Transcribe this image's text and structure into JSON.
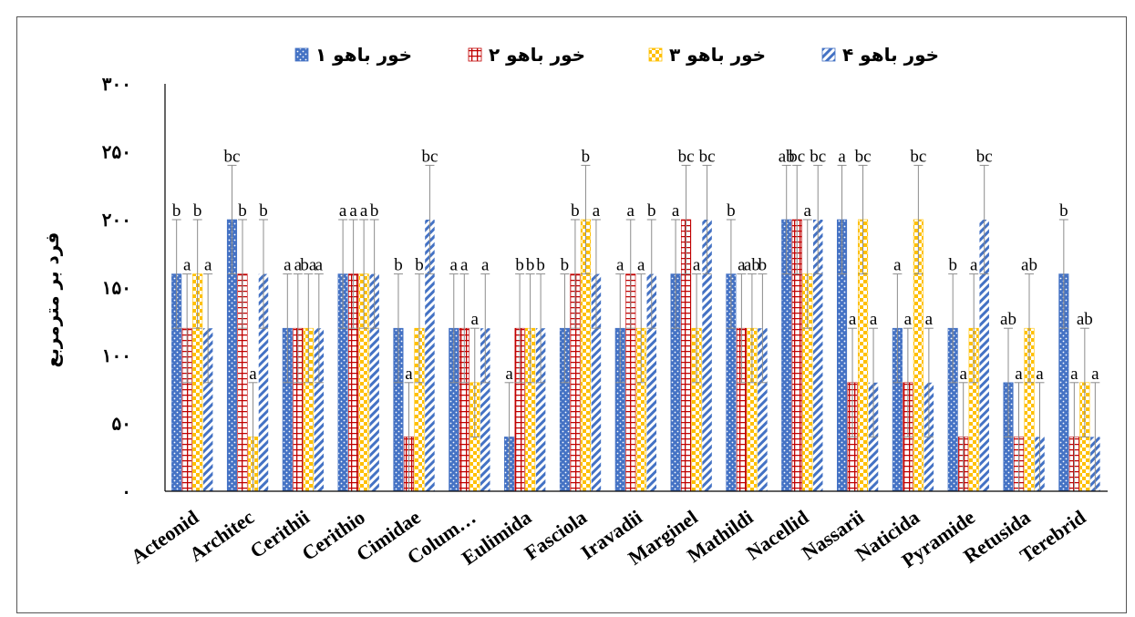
{
  "chart_data": {
    "type": "bar",
    "title": "",
    "xlabel": "",
    "ylabel": "فرد بر مترمربع",
    "ylim": [
      0,
      300
    ],
    "yticks": [
      "۰",
      "۵۰",
      "۱۰۰",
      "۱۵۰",
      "۲۰۰",
      "۲۵۰",
      "۳۰۰"
    ],
    "ytick_values": [
      0,
      50,
      100,
      150,
      200,
      250,
      300
    ],
    "legend_position": "top",
    "categories": [
      "Acteonid",
      "Architec",
      "Cerithii",
      "Cerithio",
      "Cimidae",
      "Colum…",
      "Eulimida",
      "Fasciola",
      "Iravadii",
      "Marginel",
      "Mathildi",
      "Nacellid",
      "Nassarii",
      "Naticida",
      "Pyramide",
      "Retusida",
      "Terebrid"
    ],
    "series": [
      {
        "name": "خور باهو ۱",
        "color": "#4472C4",
        "values": [
          160,
          200,
          120,
          160,
          120,
          120,
          40,
          120,
          120,
          160,
          160,
          200,
          200,
          120,
          120,
          80,
          160
        ],
        "errors": [
          40,
          40,
          40,
          40,
          40,
          40,
          40,
          40,
          40,
          40,
          40,
          40,
          40,
          40,
          40,
          40,
          40
        ],
        "sig": [
          "b",
          "bc",
          "a",
          "a",
          "b",
          "a",
          "a",
          "b",
          "a",
          "a",
          "b",
          "ab",
          "a",
          "a",
          "b",
          "ab",
          "b"
        ]
      },
      {
        "name": "خور باهو ۲",
        "color": "#C00000",
        "values": [
          120,
          160,
          120,
          160,
          40,
          120,
          120,
          160,
          160,
          200,
          120,
          200,
          80,
          80,
          40,
          40,
          40
        ],
        "errors": [
          40,
          40,
          40,
          40,
          40,
          40,
          40,
          40,
          40,
          40,
          40,
          40,
          40,
          40,
          40,
          40,
          40
        ],
        "sig": [
          "a",
          "b",
          "a",
          "a",
          "a",
          "a",
          "b",
          "b",
          "a",
          "bc",
          "a",
          "bc",
          "a",
          "a",
          "a",
          "a",
          "a"
        ]
      },
      {
        "name": "خور باهو ۳",
        "color": "#FFC000",
        "values": [
          160,
          40,
          120,
          160,
          120,
          80,
          120,
          200,
          120,
          120,
          120,
          160,
          200,
          200,
          120,
          120,
          80
        ],
        "errors": [
          40,
          40,
          40,
          40,
          40,
          40,
          40,
          40,
          40,
          40,
          40,
          40,
          40,
          40,
          40,
          40,
          40
        ],
        "sig": [
          "b",
          "a",
          "ba",
          "a",
          "b",
          "a",
          "b",
          "b",
          "a",
          "a",
          "ab",
          "a",
          "bc",
          "bc",
          "a",
          "ab",
          "ab"
        ]
      },
      {
        "name": "خور باهو ۴",
        "color": "#4472C4",
        "values": [
          120,
          160,
          120,
          160,
          200,
          120,
          120,
          160,
          160,
          200,
          120,
          200,
          80,
          80,
          200,
          40,
          40
        ],
        "errors": [
          40,
          40,
          40,
          40,
          40,
          40,
          40,
          40,
          40,
          40,
          40,
          40,
          40,
          40,
          40,
          40,
          40
        ],
        "sig": [
          "a",
          "b",
          "a",
          "b",
          "bc",
          "a",
          "b",
          "a",
          "b",
          "bc",
          "b",
          "bc",
          "a",
          "a",
          "bc",
          "a",
          "a"
        ]
      }
    ]
  }
}
